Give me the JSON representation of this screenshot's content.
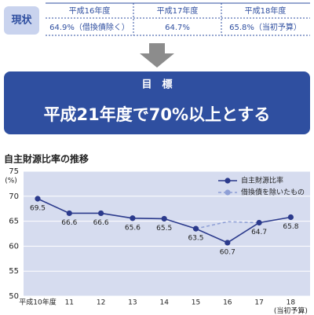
{
  "status": {
    "label": "現状",
    "headers": [
      "平成16年度",
      "平成17年度",
      "平成18年度"
    ],
    "values": [
      "64.9%（借換債除く）",
      "64.7%",
      "65.8%（当初予算）"
    ]
  },
  "goal": {
    "label": "目　標",
    "text": "平成21年度で70%以上とする"
  },
  "chart_data": {
    "type": "line",
    "title": "自主財源比率の推移",
    "y_label": "(%)",
    "categories": [
      "平成10年度",
      "11",
      "12",
      "13",
      "14",
      "15",
      "16",
      "17",
      "18"
    ],
    "category_note": "(当初予算)",
    "ylim": [
      50,
      75
    ],
    "yticks": [
      50,
      55,
      60,
      65,
      70,
      75
    ],
    "grid": true,
    "legend": "upper right",
    "series": [
      {
        "name": "自主財源比率",
        "color": "#2b3a8c",
        "dashed": false,
        "values": [
          69.5,
          66.6,
          66.6,
          65.6,
          65.5,
          63.5,
          60.7,
          64.7,
          65.8
        ]
      },
      {
        "name": "借換債を除いたもの",
        "color": "#8e9fd6",
        "dashed": true,
        "values": [
          null,
          null,
          null,
          null,
          null,
          63.5,
          64.9,
          64.7,
          null
        ]
      }
    ]
  }
}
